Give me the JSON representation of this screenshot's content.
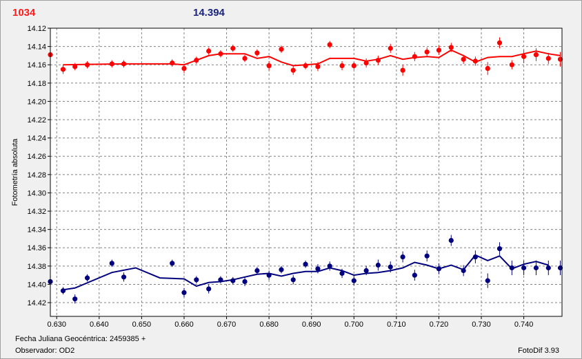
{
  "header": {
    "left_value": "1034",
    "right_value": "14.394"
  },
  "footer": {
    "date_label": "Fecha Juliana Geocéntrica: 2459385 +",
    "observer_label": "Observador: OD2",
    "version_label": "FotoDif 3.93"
  },
  "colors": {
    "series_top": "#ff0000",
    "series_bottom": "#00007f",
    "grid": "#808080",
    "plot_bg": "#ffffff"
  },
  "chart_data": {
    "type": "scatter",
    "title": "",
    "xlabel": "Fecha Juliana Geocéntrica: 2459385 +",
    "ylabel": "Fotometría absoluta",
    "xlim": [
      0.6285,
      0.749
    ],
    "ylim": [
      14.12,
      14.435
    ],
    "y_inverted": true,
    "grid": true,
    "x_ticks": [
      "0.630",
      "0.640",
      "0.650",
      "0.660",
      "0.670",
      "0.680",
      "0.690",
      "0.700",
      "0.710",
      "0.720",
      "0.730",
      "0.740"
    ],
    "y_ticks": [
      "14.12",
      "14.14",
      "14.16",
      "14.18",
      "14.20",
      "14.22",
      "14.24",
      "14.26",
      "14.28",
      "14.30",
      "14.32",
      "14.34",
      "14.36",
      "14.38",
      "14.40",
      "14.42"
    ],
    "series": [
      {
        "color": "#ff0000",
        "x": [
          0.6285,
          0.6315,
          0.6343,
          0.6372,
          0.643,
          0.6458,
          0.6572,
          0.66,
          0.6629,
          0.6658,
          0.6686,
          0.6715,
          0.6743,
          0.6772,
          0.68,
          0.6829,
          0.6857,
          0.6886,
          0.6915,
          0.6943,
          0.6972,
          0.7,
          0.7029,
          0.7057,
          0.7086,
          0.7115,
          0.7143,
          0.7172,
          0.72,
          0.7229,
          0.7258,
          0.7286,
          0.7315,
          0.7343,
          0.7372,
          0.74,
          0.7429,
          0.7458,
          0.7486
        ],
        "y": [
          14.149,
          14.165,
          14.162,
          14.16,
          14.159,
          14.159,
          14.158,
          14.164,
          14.155,
          14.145,
          14.148,
          14.142,
          14.153,
          14.147,
          14.161,
          14.143,
          14.166,
          14.161,
          14.162,
          14.138,
          14.161,
          14.161,
          14.158,
          14.155,
          14.142,
          14.166,
          14.151,
          14.146,
          14.144,
          14.141,
          14.154,
          14.156,
          14.164,
          14.136,
          14.16,
          14.151,
          14.149,
          14.153,
          14.154
        ],
        "err": [
          0.006,
          0.005,
          0.004,
          0.004,
          0.004,
          0.004,
          0.004,
          0.005,
          0.004,
          0.004,
          0.004,
          0.004,
          0.004,
          0.004,
          0.005,
          0.004,
          0.005,
          0.004,
          0.005,
          0.004,
          0.005,
          0.004,
          0.005,
          0.005,
          0.005,
          0.006,
          0.005,
          0.005,
          0.005,
          0.005,
          0.005,
          0.005,
          0.007,
          0.006,
          0.005,
          0.007,
          0.007,
          0.006,
          0.008
        ],
        "fit_x": [
          0.6315,
          0.6458,
          0.6572,
          0.66,
          0.6629,
          0.6658,
          0.6686,
          0.6715,
          0.6743,
          0.6772,
          0.68,
          0.6829,
          0.6857,
          0.6886,
          0.6915,
          0.6943,
          0.6972,
          0.7,
          0.7029,
          0.7057,
          0.7086,
          0.7115,
          0.7143,
          0.7172,
          0.72,
          0.7229,
          0.7258,
          0.7286,
          0.7315,
          0.7343,
          0.7372,
          0.74,
          0.7429,
          0.7458,
          0.7486
        ],
        "fit_y": [
          14.16,
          14.159,
          14.159,
          14.16,
          14.155,
          14.15,
          14.148,
          14.148,
          14.148,
          14.153,
          14.151,
          14.157,
          14.161,
          14.16,
          14.159,
          14.153,
          14.153,
          14.153,
          14.156,
          14.154,
          14.15,
          14.154,
          14.152,
          14.151,
          14.152,
          14.144,
          14.15,
          14.157,
          14.152,
          14.151,
          14.151,
          14.148,
          14.145,
          14.148,
          14.15
        ]
      },
      {
        "color": "#00007f",
        "x": [
          0.6285,
          0.6315,
          0.6343,
          0.6372,
          0.643,
          0.6458,
          0.6572,
          0.66,
          0.6629,
          0.6658,
          0.6686,
          0.6715,
          0.6743,
          0.6772,
          0.68,
          0.6829,
          0.6857,
          0.6886,
          0.6915,
          0.6943,
          0.6972,
          0.7,
          0.7029,
          0.7057,
          0.7086,
          0.7115,
          0.7143,
          0.7172,
          0.72,
          0.7229,
          0.7258,
          0.7286,
          0.7315,
          0.7343,
          0.7372,
          0.74,
          0.7429,
          0.7458,
          0.7486
        ],
        "y": [
          14.397,
          14.407,
          14.416,
          14.393,
          14.377,
          14.392,
          14.377,
          14.409,
          14.395,
          14.405,
          14.395,
          14.396,
          14.397,
          14.385,
          14.39,
          14.384,
          14.395,
          14.378,
          14.383,
          14.38,
          14.388,
          14.396,
          14.385,
          14.379,
          14.381,
          14.37,
          14.39,
          14.369,
          14.383,
          14.352,
          14.385,
          14.37,
          14.396,
          14.361,
          14.382,
          14.382,
          14.382,
          14.382,
          14.382
        ],
        "err": [
          0.005,
          0.004,
          0.005,
          0.004,
          0.004,
          0.005,
          0.004,
          0.005,
          0.004,
          0.005,
          0.004,
          0.004,
          0.005,
          0.004,
          0.005,
          0.004,
          0.005,
          0.004,
          0.005,
          0.005,
          0.005,
          0.005,
          0.005,
          0.006,
          0.006,
          0.006,
          0.006,
          0.006,
          0.006,
          0.006,
          0.006,
          0.007,
          0.008,
          0.007,
          0.008,
          0.008,
          0.008,
          0.008,
          0.008
        ],
        "fit_x": [
          0.6315,
          0.6343,
          0.643,
          0.6486,
          0.6543,
          0.66,
          0.6629,
          0.6658,
          0.6686,
          0.6715,
          0.6743,
          0.6772,
          0.68,
          0.6829,
          0.6857,
          0.6886,
          0.6915,
          0.6943,
          0.6972,
          0.7,
          0.7029,
          0.7057,
          0.7086,
          0.7115,
          0.7143,
          0.7172,
          0.72,
          0.7229,
          0.7258,
          0.7286,
          0.7315,
          0.7343,
          0.7372,
          0.74,
          0.7429,
          0.7458
        ],
        "fit_y": [
          14.406,
          14.404,
          14.387,
          14.382,
          14.393,
          14.394,
          14.402,
          14.398,
          14.397,
          14.395,
          14.392,
          14.389,
          14.388,
          14.391,
          14.388,
          14.386,
          14.386,
          14.382,
          14.385,
          14.39,
          14.388,
          14.387,
          14.385,
          14.382,
          14.376,
          14.379,
          14.383,
          14.379,
          14.384,
          14.368,
          14.374,
          14.369,
          14.383,
          14.378,
          14.375,
          14.379
        ]
      }
    ]
  }
}
